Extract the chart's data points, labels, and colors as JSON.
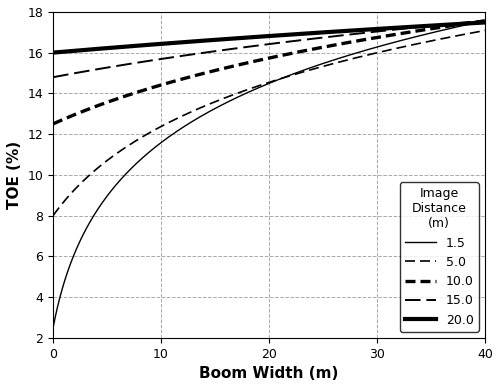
{
  "title": "",
  "xlabel": "Boom Width (m)",
  "ylabel": "TOE (%)",
  "xlim": [
    0,
    40
  ],
  "ylim": [
    2,
    18
  ],
  "xticks": [
    0,
    10,
    20,
    30,
    40
  ],
  "yticks": [
    2,
    4,
    6,
    8,
    10,
    12,
    14,
    16,
    18
  ],
  "legend_title": "Image\nDistance\n(m)",
  "curves": [
    {
      "label": "1.5",
      "ls_name": "solid_thin",
      "lw": 1.0,
      "a": 4.45,
      "b": 1.87
    },
    {
      "label": "5.0",
      "ls_name": "dashed_thin",
      "lw": 1.2,
      "a": 4.45,
      "b": 6.2
    },
    {
      "label": "10.0",
      "ls_name": "dashed_thick",
      "lw": 2.4,
      "a": 4.45,
      "b": 12.4
    },
    {
      "label": "15.0",
      "ls_name": "dashed_long",
      "lw": 1.5,
      "a": 4.45,
      "b": 18.6
    },
    {
      "label": "20.0",
      "ls_name": "solid_thick",
      "lw": 3.0,
      "a": 4.45,
      "b": 24.8
    }
  ],
  "background_color": "#ffffff",
  "grid_color": "#aaaaaa"
}
